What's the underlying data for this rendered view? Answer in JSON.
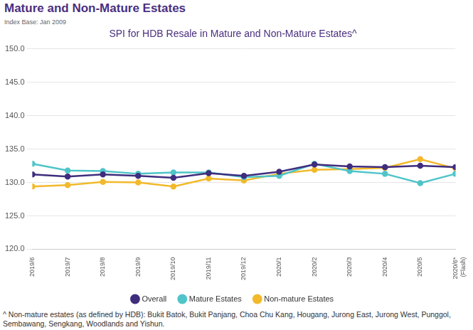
{
  "chart_data": {
    "type": "line",
    "heading": "Mature and Non-Mature Estates",
    "subtitle": "Index Base: Jan 2009",
    "title": "SPI for HDB Resale in Mature and Non-Mature Estates^",
    "footnote": "^ Non-mature estates (as defined by HDB): Bukit Batok, Bukit Panjang, Choa Chu Kang, Hougang, Jurong East, Jurong West, Punggol, Sembawang, Sengkang, Woodlands and Yishun.",
    "categories": [
      "2019/6",
      "2019/7",
      "2019/8",
      "2019/9",
      "2019/10",
      "2019/11",
      "2019/12",
      "2020/1",
      "2020/2",
      "2020/3",
      "2020/4",
      "2020/5",
      "2020/6*\n(Flash)"
    ],
    "series": [
      {
        "name": "Overall",
        "color": "#3f2d7d",
        "marker": "circle",
        "line_style": "solid",
        "values": [
          131.2,
          130.9,
          131.2,
          131.0,
          130.7,
          131.4,
          131.0,
          131.6,
          132.7,
          132.4,
          132.3,
          132.5,
          132.3
        ]
      },
      {
        "name": "Mature Estates",
        "color": "#4fc4c9",
        "marker": "circle",
        "line_style": "solid",
        "values": [
          132.8,
          131.8,
          131.7,
          131.3,
          131.5,
          131.5,
          130.8,
          131.0,
          132.8,
          131.7,
          131.3,
          129.9,
          131.3
        ]
      },
      {
        "name": "Non-mature Estates",
        "color": "#f2b92b",
        "marker": "circle",
        "line_style": "solid",
        "values": [
          129.4,
          129.6,
          130.1,
          130.0,
          129.4,
          130.6,
          130.3,
          131.3,
          131.9,
          132.0,
          132.2,
          133.5,
          132.1
        ]
      }
    ],
    "ylim": [
      120,
      150
    ],
    "yticks": [
      {
        "value": 120,
        "label": "120.0"
      },
      {
        "value": 125,
        "label": "125.0"
      },
      {
        "value": 130,
        "label": "130.0"
      },
      {
        "value": 135,
        "label": "135.0"
      },
      {
        "value": 140,
        "label": "140.0"
      },
      {
        "value": 145,
        "label": "145.0"
      },
      {
        "value": 150,
        "label": "150.0"
      }
    ],
    "grid": true,
    "legend": "bottom"
  }
}
